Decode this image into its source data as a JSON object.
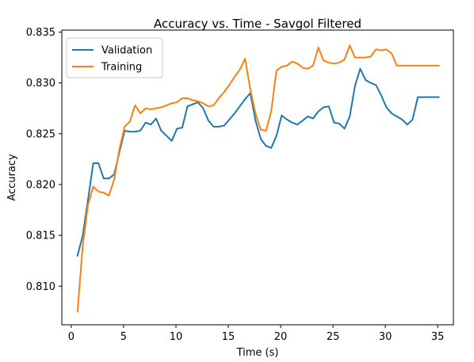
{
  "chart_data": {
    "type": "line",
    "title": "Accuracy vs. Time - Savgol Filtered",
    "xlabel": "Time (s)",
    "ylabel": "Accuracy",
    "xlim": [
      -0.9,
      36.5
    ],
    "ylim": [
      0.8062,
      0.8352
    ],
    "xticks": [
      0,
      5,
      10,
      15,
      20,
      25,
      30,
      35
    ],
    "xtick_labels": [
      "0",
      "5",
      "10",
      "15",
      "20",
      "25",
      "30",
      "35"
    ],
    "yticks": [
      0.81,
      0.815,
      0.82,
      0.825,
      0.83,
      0.835
    ],
    "ytick_labels": [
      "0.810",
      "0.815",
      "0.820",
      "0.825",
      "0.830",
      "0.835"
    ],
    "grid": false,
    "legend_position": "top-left",
    "series": [
      {
        "name": "Validation",
        "color": "#1f77b4",
        "x": [
          0.6,
          1.1,
          1.6,
          2.1,
          2.6,
          3.1,
          3.6,
          4.1,
          4.6,
          5.1,
          5.6,
          6.1,
          6.6,
          7.1,
          7.6,
          8.1,
          8.6,
          9.1,
          9.6,
          10.1,
          10.6,
          11.1,
          11.6,
          12.1,
          12.6,
          13.1,
          13.6,
          14.1,
          14.6,
          15.1,
          15.6,
          16.1,
          16.6,
          17.1,
          17.6,
          18.1,
          18.6,
          19.1,
          19.6,
          20.1,
          20.6,
          21.1,
          21.6,
          22.1,
          22.6,
          23.1,
          23.6,
          24.1,
          24.6,
          25.1,
          25.6,
          26.1,
          26.6,
          27.1,
          27.6,
          28.1,
          28.6,
          29.1,
          29.6,
          30.1,
          30.6,
          31.1,
          31.6,
          32.1,
          32.6,
          33.1,
          33.6,
          34.1,
          34.6,
          35.1
        ],
        "y": [
          0.813,
          0.815,
          0.8185,
          0.8221,
          0.8221,
          0.8206,
          0.8206,
          0.821,
          0.8232,
          0.8253,
          0.8252,
          0.8252,
          0.8253,
          0.8261,
          0.8259,
          0.8265,
          0.8253,
          0.8248,
          0.8243,
          0.8255,
          0.8256,
          0.8277,
          0.8279,
          0.8281,
          0.8275,
          0.8263,
          0.8257,
          0.8257,
          0.8258,
          0.8264,
          0.827,
          0.8277,
          0.8284,
          0.829,
          0.8263,
          0.8245,
          0.8238,
          0.8236,
          0.8248,
          0.8268,
          0.8264,
          0.8261,
          0.8259,
          0.8263,
          0.8267,
          0.8265,
          0.8272,
          0.8276,
          0.8277,
          0.8261,
          0.826,
          0.8255,
          0.8267,
          0.8297,
          0.8314,
          0.8303,
          0.83,
          0.8298,
          0.8288,
          0.8276,
          0.827,
          0.8267,
          0.8264,
          0.8259,
          0.8264,
          0.8286,
          0.8286,
          0.8286,
          0.8286,
          0.8286
        ]
      },
      {
        "name": "Training",
        "color": "#ff7f0e",
        "x": [
          0.6,
          1.1,
          1.6,
          2.1,
          2.6,
          3.1,
          3.6,
          4.1,
          4.6,
          5.1,
          5.6,
          6.1,
          6.6,
          7.1,
          7.6,
          8.1,
          8.6,
          9.1,
          9.6,
          10.1,
          10.6,
          11.1,
          11.6,
          12.1,
          12.6,
          13.1,
          13.6,
          14.1,
          14.6,
          15.1,
          15.6,
          16.1,
          16.6,
          17.1,
          17.6,
          18.1,
          18.6,
          19.1,
          19.6,
          20.1,
          20.6,
          21.1,
          21.6,
          22.1,
          22.6,
          23.1,
          23.6,
          24.1,
          24.6,
          25.1,
          25.6,
          26.1,
          26.6,
          27.1,
          27.6,
          28.1,
          28.6,
          29.1,
          29.6,
          30.1,
          30.6,
          31.1,
          31.6,
          32.1,
          32.6,
          33.1,
          33.6,
          34.1,
          34.6,
          35.1
        ],
        "y": [
          0.8075,
          0.814,
          0.818,
          0.8198,
          0.8193,
          0.8192,
          0.8189,
          0.8205,
          0.8235,
          0.8257,
          0.8262,
          0.8278,
          0.827,
          0.8275,
          0.8274,
          0.8275,
          0.8276,
          0.8278,
          0.828,
          0.8281,
          0.8285,
          0.8285,
          0.8283,
          0.8282,
          0.828,
          0.8277,
          0.8278,
          0.8285,
          0.8291,
          0.8298,
          0.8306,
          0.8313,
          0.8324,
          0.8294,
          0.827,
          0.8254,
          0.8253,
          0.8272,
          0.8312,
          0.8316,
          0.8317,
          0.8321,
          0.8319,
          0.8315,
          0.8314,
          0.8317,
          0.8335,
          0.8322,
          0.832,
          0.8319,
          0.832,
          0.8323,
          0.8337,
          0.8325,
          0.8325,
          0.8325,
          0.8326,
          0.8333,
          0.8332,
          0.8333,
          0.8329,
          0.8317,
          0.8317,
          0.8317,
          0.8317,
          0.8317,
          0.8317,
          0.8317,
          0.8317,
          0.8317
        ]
      }
    ]
  }
}
